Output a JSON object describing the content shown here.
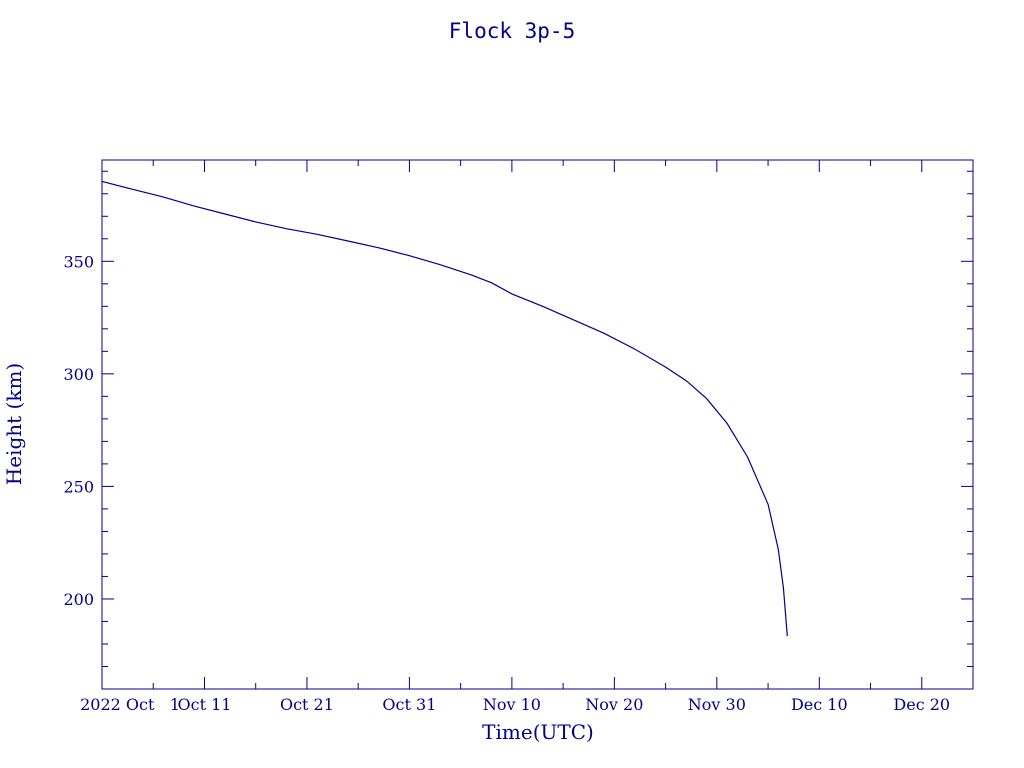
{
  "chart_data": {
    "type": "line",
    "title": "Flock 3p-5",
    "xlabel": "Time(UTC)",
    "ylabel": "Height (km)",
    "xlim": [
      "2022-10-01",
      "2022-12-25"
    ],
    "ylim": [
      160,
      395
    ],
    "x_ticks": [
      {
        "date": "2022-10-01",
        "label": "2022 Oct   1"
      },
      {
        "date": "2022-10-11",
        "label": "Oct 11"
      },
      {
        "date": "2022-10-21",
        "label": "Oct 21"
      },
      {
        "date": "2022-10-31",
        "label": "Oct 31"
      },
      {
        "date": "2022-11-10",
        "label": "Nov 10"
      },
      {
        "date": "2022-11-20",
        "label": "Nov 20"
      },
      {
        "date": "2022-11-30",
        "label": "Nov 30"
      },
      {
        "date": "2022-12-10",
        "label": "Dec 10"
      },
      {
        "date": "2022-12-20",
        "label": "Dec 20"
      }
    ],
    "y_ticks": [
      200,
      250,
      300,
      350
    ],
    "series": [
      {
        "color": "#00008b",
        "points": [
          {
            "x": "2022-10-01",
            "y": 385.5
          },
          {
            "x": "2022-10-04",
            "y": 382.0
          },
          {
            "x": "2022-10-07",
            "y": 378.5
          },
          {
            "x": "2022-10-10",
            "y": 374.5
          },
          {
            "x": "2022-10-13",
            "y": 371.0
          },
          {
            "x": "2022-10-16",
            "y": 367.5
          },
          {
            "x": "2022-10-19",
            "y": 364.5
          },
          {
            "x": "2022-10-22",
            "y": 362.0
          },
          {
            "x": "2022-10-25",
            "y": 359.0
          },
          {
            "x": "2022-10-28",
            "y": 356.0
          },
          {
            "x": "2022-10-31",
            "y": 352.5
          },
          {
            "x": "2022-11-03",
            "y": 348.5
          },
          {
            "x": "2022-11-06",
            "y": 344.0
          },
          {
            "x": "2022-11-08",
            "y": 340.5
          },
          {
            "x": "2022-11-10",
            "y": 335.5
          },
          {
            "x": "2022-11-13",
            "y": 330.0
          },
          {
            "x": "2022-11-16",
            "y": 324.0
          },
          {
            "x": "2022-11-19",
            "y": 318.0
          },
          {
            "x": "2022-11-22",
            "y": 311.0
          },
          {
            "x": "2022-11-25",
            "y": 303.0
          },
          {
            "x": "2022-11-27",
            "y": 297.0
          },
          {
            "x": "2022-11-29",
            "y": 289.0
          },
          {
            "x": "2022-12-01",
            "y": 278.0
          },
          {
            "x": "2022-12-03",
            "y": 263.0
          },
          {
            "x": "2022-12-05",
            "y": 242.0
          },
          {
            "x": "2022-12-06",
            "y": 222.0
          },
          {
            "x": "2022-12-06T12:00",
            "y": 205.0
          },
          {
            "x": "2022-12-06T21:00",
            "y": 183.5
          }
        ]
      }
    ],
    "grid": false,
    "legend": "none"
  }
}
